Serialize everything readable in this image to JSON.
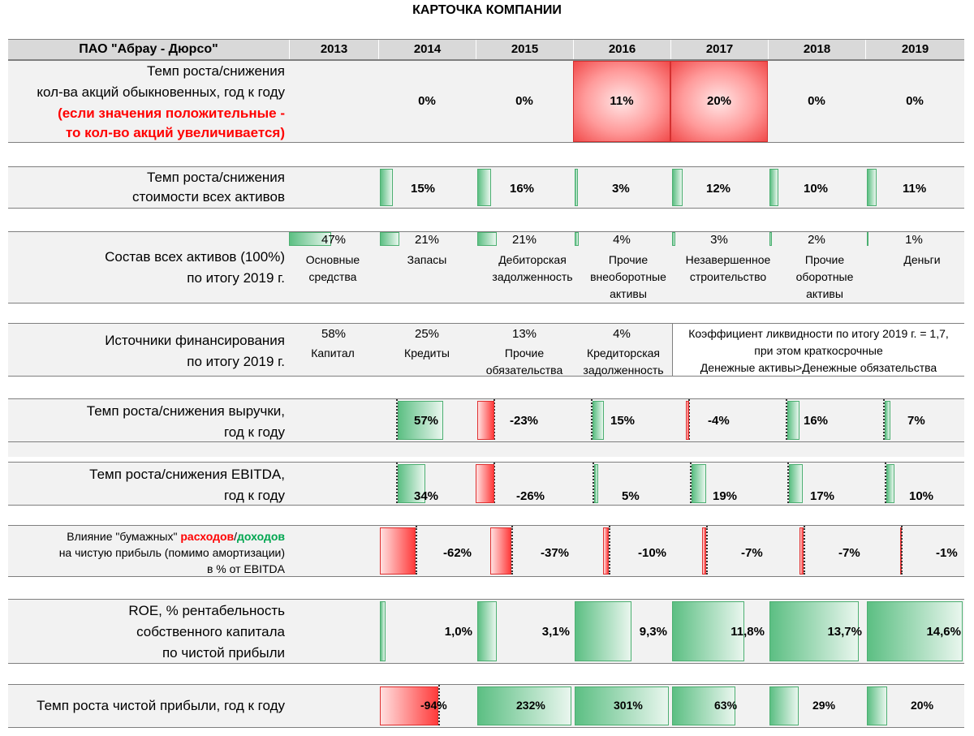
{
  "title": "КАРТОЧКА КОМПАНИИ",
  "company": "ПАО \"Абрау - Дюрсо\"",
  "years": [
    "2013",
    "2014",
    "2015",
    "2016",
    "2017",
    "2018",
    "2019"
  ],
  "shares": {
    "label_l1": "Темп роста/снижения",
    "label_l2": "кол-ва акций обыкновенных,  год к году",
    "note_l1": "(если значения положительные -",
    "note_l2": "то кол-во акций увеличивается)",
    "values": [
      "0%",
      "0%",
      "11%",
      "20%",
      "0%",
      "0%"
    ],
    "numeric": [
      0,
      0,
      11,
      20,
      0,
      0
    ]
  },
  "assets_growth": {
    "label_l1": "Темп роста/снижения",
    "label_l2": "стоимости всех активов",
    "values": [
      "15%",
      "16%",
      "3%",
      "12%",
      "10%",
      "11%"
    ],
    "numeric": [
      15,
      16,
      3,
      12,
      10,
      11
    ]
  },
  "assets_structure": {
    "label_l1": "Состав всех активов (100%)",
    "label_l2": "по итогу 2019 г.",
    "items": [
      {
        "pct": "47%",
        "cap_l1": "Основные",
        "cap_l2": "средства",
        "cap_l3": "",
        "value": 47
      },
      {
        "pct": "21%",
        "cap_l1": "Запасы",
        "cap_l2": "",
        "cap_l3": "",
        "value": 21
      },
      {
        "pct": "21%",
        "cap_l1": "Дебиторская",
        "cap_l2": "задолженность",
        "cap_l3": "",
        "value": 21
      },
      {
        "pct": "4%",
        "cap_l1": "Прочие",
        "cap_l2": "внеоборотные",
        "cap_l3": "активы",
        "value": 4
      },
      {
        "pct": "3%",
        "cap_l1": "Незавершенное",
        "cap_l2": "строительство",
        "cap_l3": "",
        "value": 3
      },
      {
        "pct": "2%",
        "cap_l1": "Прочие",
        "cap_l2": "оборотные",
        "cap_l3": "активы",
        "value": 2
      },
      {
        "pct": "1%",
        "cap_l1": "Деньги",
        "cap_l2": "",
        "cap_l3": "",
        "value": 1
      }
    ]
  },
  "financing": {
    "label_l1": "Источники финансирования",
    "label_l2": "по итогу 2019 г.",
    "items": [
      {
        "pct": "58%",
        "cap_l1": "Капитал",
        "cap_l2": ""
      },
      {
        "pct": "25%",
        "cap_l1": "Кредиты",
        "cap_l2": ""
      },
      {
        "pct": "13%",
        "cap_l1": "Прочие",
        "cap_l2": "обязательства"
      },
      {
        "pct": "4%",
        "cap_l1": "Кредиторская",
        "cap_l2": "задолженность"
      }
    ],
    "liquidity_l1": "Коэффициент ликвидности по итогу 2019 г. = 1,7,",
    "liquidity_l2": "при этом краткосрочные",
    "liquidity_l3": "Денежные активы>Денежные обязательства"
  },
  "revenue": {
    "label_l1": "Темп роста/снижения выручки,",
    "label_l2": "год к году",
    "values": [
      "57%",
      "-23%",
      "15%",
      "-4%",
      "16%",
      "7%"
    ],
    "numeric": [
      57,
      -23,
      15,
      -4,
      16,
      7
    ]
  },
  "ebitda": {
    "label_l1": "Темп роста/снижения EBITDA,",
    "label_l2": "год к году",
    "values": [
      "34%",
      "-26%",
      "5%",
      "19%",
      "17%",
      "10%"
    ],
    "numeric": [
      34,
      -26,
      5,
      19,
      17,
      10
    ]
  },
  "paper": {
    "l1_a": "Влияние \"бумажных\" ",
    "l1_b": "расходов",
    "l1_c": "/",
    "l1_d": "доходов",
    "l2": "на чистую прибыль (помимо амортизации)",
    "l3": "в % от EBITDA",
    "values": [
      "-62%",
      "-37%",
      "-10%",
      "-7%",
      "-7%",
      "-1%"
    ],
    "numeric": [
      -62,
      -37,
      -10,
      -7,
      -7,
      -1
    ]
  },
  "roe": {
    "label_l1": "ROE, % рентабельность",
    "label_l2": "собственного капитала",
    "label_l3": "по чистой прибыли",
    "values": [
      "1,0%",
      "3,1%",
      "9,3%",
      "11,8%",
      "13,7%",
      "14,6%"
    ],
    "numeric": [
      1.0,
      3.1,
      9.3,
      11.8,
      13.7,
      14.6
    ]
  },
  "net_profit": {
    "label": "Темп роста чистой прибыли, год к году",
    "values": [
      "-94%",
      "232%",
      "301%",
      "63%",
      "29%",
      "20%"
    ],
    "numeric": [
      -94,
      232,
      301,
      63,
      29,
      20
    ]
  },
  "colors": {
    "green": "#5cbf83",
    "red": "#ff3b3b",
    "header_bg": "#d9d9d9",
    "row_bg": "#f2f2f2"
  }
}
